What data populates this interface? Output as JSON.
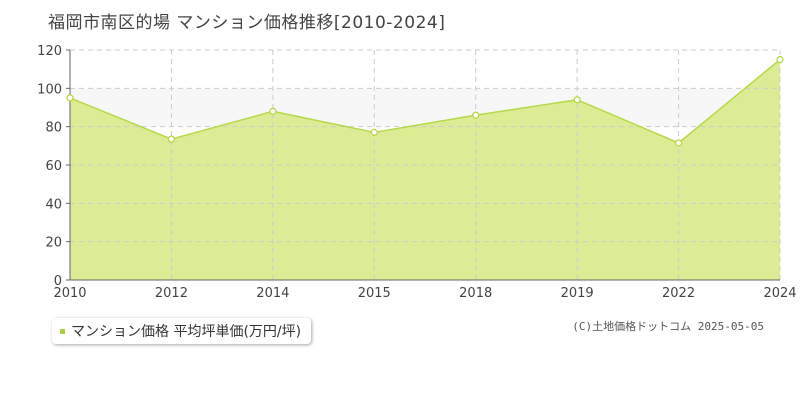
{
  "title": "福岡市南区的場 マンション価格推移[2010-2024]",
  "legend": {
    "label": "マンション価格 平均坪単価(万円/坪)"
  },
  "copyright": "(C)土地価格ドットコム 2025-05-05",
  "colors": {
    "area_fill": "#dbec94",
    "line": "#b5d94a",
    "marker_fill": "#ffffff",
    "grid": "#cccccc",
    "legend_marker": "#a8d13a"
  },
  "chart_data": {
    "type": "area",
    "title": "福岡市南区的場 マンション価格推移[2010-2024]",
    "xlabel": "",
    "ylabel": "",
    "categories": [
      "2010",
      "2012",
      "2014",
      "2015",
      "2018",
      "2019",
      "2022",
      "2024"
    ],
    "series": [
      {
        "name": "マンション価格 平均坪単価(万円/坪)",
        "values": [
          95,
          73.5,
          88,
          77,
          86,
          94,
          71.5,
          115
        ]
      }
    ],
    "ylim": [
      0,
      120
    ],
    "yticks": [
      0,
      20,
      40,
      60,
      80,
      100,
      120
    ],
    "grid": true,
    "legend_position": "bottom-left"
  }
}
